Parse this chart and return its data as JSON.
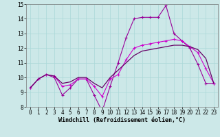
{
  "xlabel": "Windchill (Refroidissement éolien,°C)",
  "background_color": "#cce8e8",
  "line_color1": "#990099",
  "line_color2": "#cc00cc",
  "line_color3": "#660066",
  "xlim": [
    -0.5,
    23.5
  ],
  "ylim": [
    8,
    15
  ],
  "yticks": [
    8,
    9,
    10,
    11,
    12,
    13,
    14,
    15
  ],
  "xticks": [
    0,
    1,
    2,
    3,
    4,
    5,
    6,
    7,
    8,
    9,
    10,
    11,
    12,
    13,
    14,
    15,
    16,
    17,
    18,
    19,
    20,
    21,
    22,
    23
  ],
  "series1_x": [
    0,
    1,
    2,
    3,
    4,
    5,
    6,
    7,
    8,
    9,
    10,
    11,
    12,
    13,
    14,
    15,
    16,
    17,
    18,
    19,
    20,
    21,
    22,
    23
  ],
  "series1_y": [
    9.3,
    9.9,
    10.2,
    10.0,
    8.8,
    9.3,
    9.9,
    9.9,
    8.8,
    7.7,
    9.4,
    11.0,
    12.7,
    14.0,
    14.1,
    14.1,
    14.1,
    14.9,
    13.0,
    12.5,
    12.0,
    10.9,
    9.6,
    9.6
  ],
  "series2_x": [
    0,
    1,
    2,
    3,
    4,
    5,
    6,
    7,
    8,
    9,
    10,
    11,
    12,
    13,
    14,
    15,
    16,
    17,
    18,
    19,
    20,
    21,
    22,
    23
  ],
  "series2_y": [
    9.3,
    9.9,
    10.2,
    10.1,
    9.4,
    9.5,
    9.9,
    9.9,
    9.4,
    8.7,
    9.9,
    10.2,
    11.2,
    12.0,
    12.2,
    12.3,
    12.4,
    12.5,
    12.6,
    12.5,
    12.1,
    11.7,
    10.6,
    9.6
  ],
  "series3_x": [
    0,
    1,
    2,
    3,
    4,
    5,
    6,
    7,
    8,
    9,
    10,
    11,
    12,
    13,
    14,
    15,
    16,
    17,
    18,
    19,
    20,
    21,
    22,
    23
  ],
  "series3_y": [
    9.3,
    9.9,
    10.2,
    10.1,
    9.6,
    9.7,
    10.0,
    10.0,
    9.6,
    9.3,
    10.0,
    10.5,
    11.0,
    11.5,
    11.8,
    11.9,
    12.0,
    12.1,
    12.2,
    12.2,
    12.1,
    11.9,
    11.3,
    9.6
  ],
  "tick_fontsize": 5.5,
  "xlabel_fontsize": 6.0,
  "grid_color": "#aad8d8"
}
